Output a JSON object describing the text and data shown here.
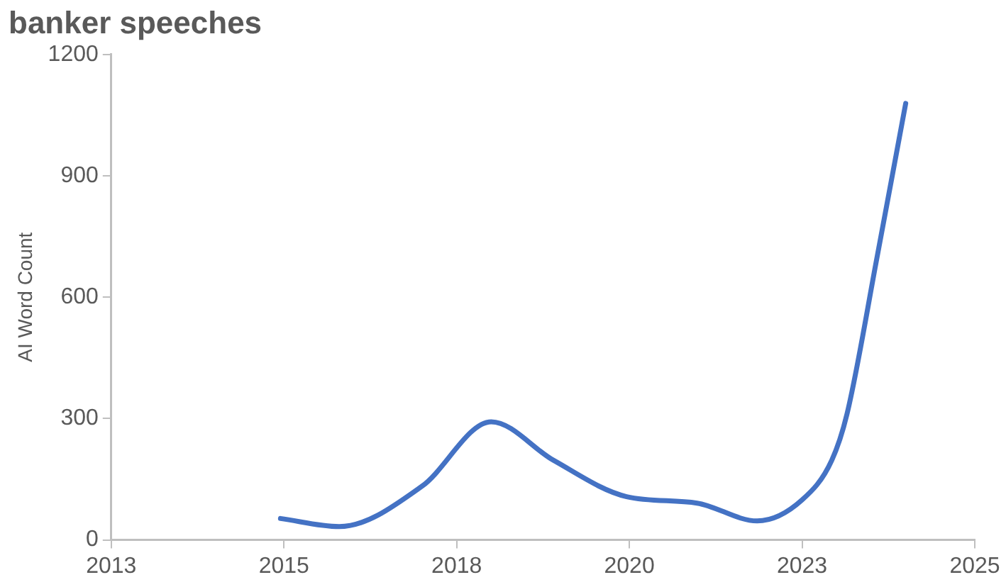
{
  "chart_data": {
    "type": "line",
    "title": "banker speeches",
    "ylabel": "AI Word Count",
    "x": [
      2015.45,
      2016.3,
      2017.5,
      2018.5,
      2019.4,
      2020.46,
      2021.48,
      2022.35,
      2023.0,
      2023.43,
      2023.65,
      2024.09,
      2024.5
    ],
    "series": [
      {
        "color": "#4472c4",
        "values": [
          53,
          33,
          133,
          292,
          197,
          107,
          91,
          47,
          99,
          197,
          311,
          703,
          1079
        ]
      }
    ],
    "xlim": [
      2013,
      2025.5
    ],
    "xticks": [
      2013,
      {
        "value": 2015.5,
        "label": "2015"
      },
      2018,
      {
        "value": 2020.5,
        "label": "2020"
      },
      2023,
      {
        "value": 2025.5,
        "label": "2025"
      }
    ],
    "ylim": [
      0,
      1200
    ],
    "yticks": [
      0,
      300,
      600,
      900,
      1200
    ],
    "grid": false,
    "legend": false,
    "marker": "none",
    "line_style": "solid"
  }
}
